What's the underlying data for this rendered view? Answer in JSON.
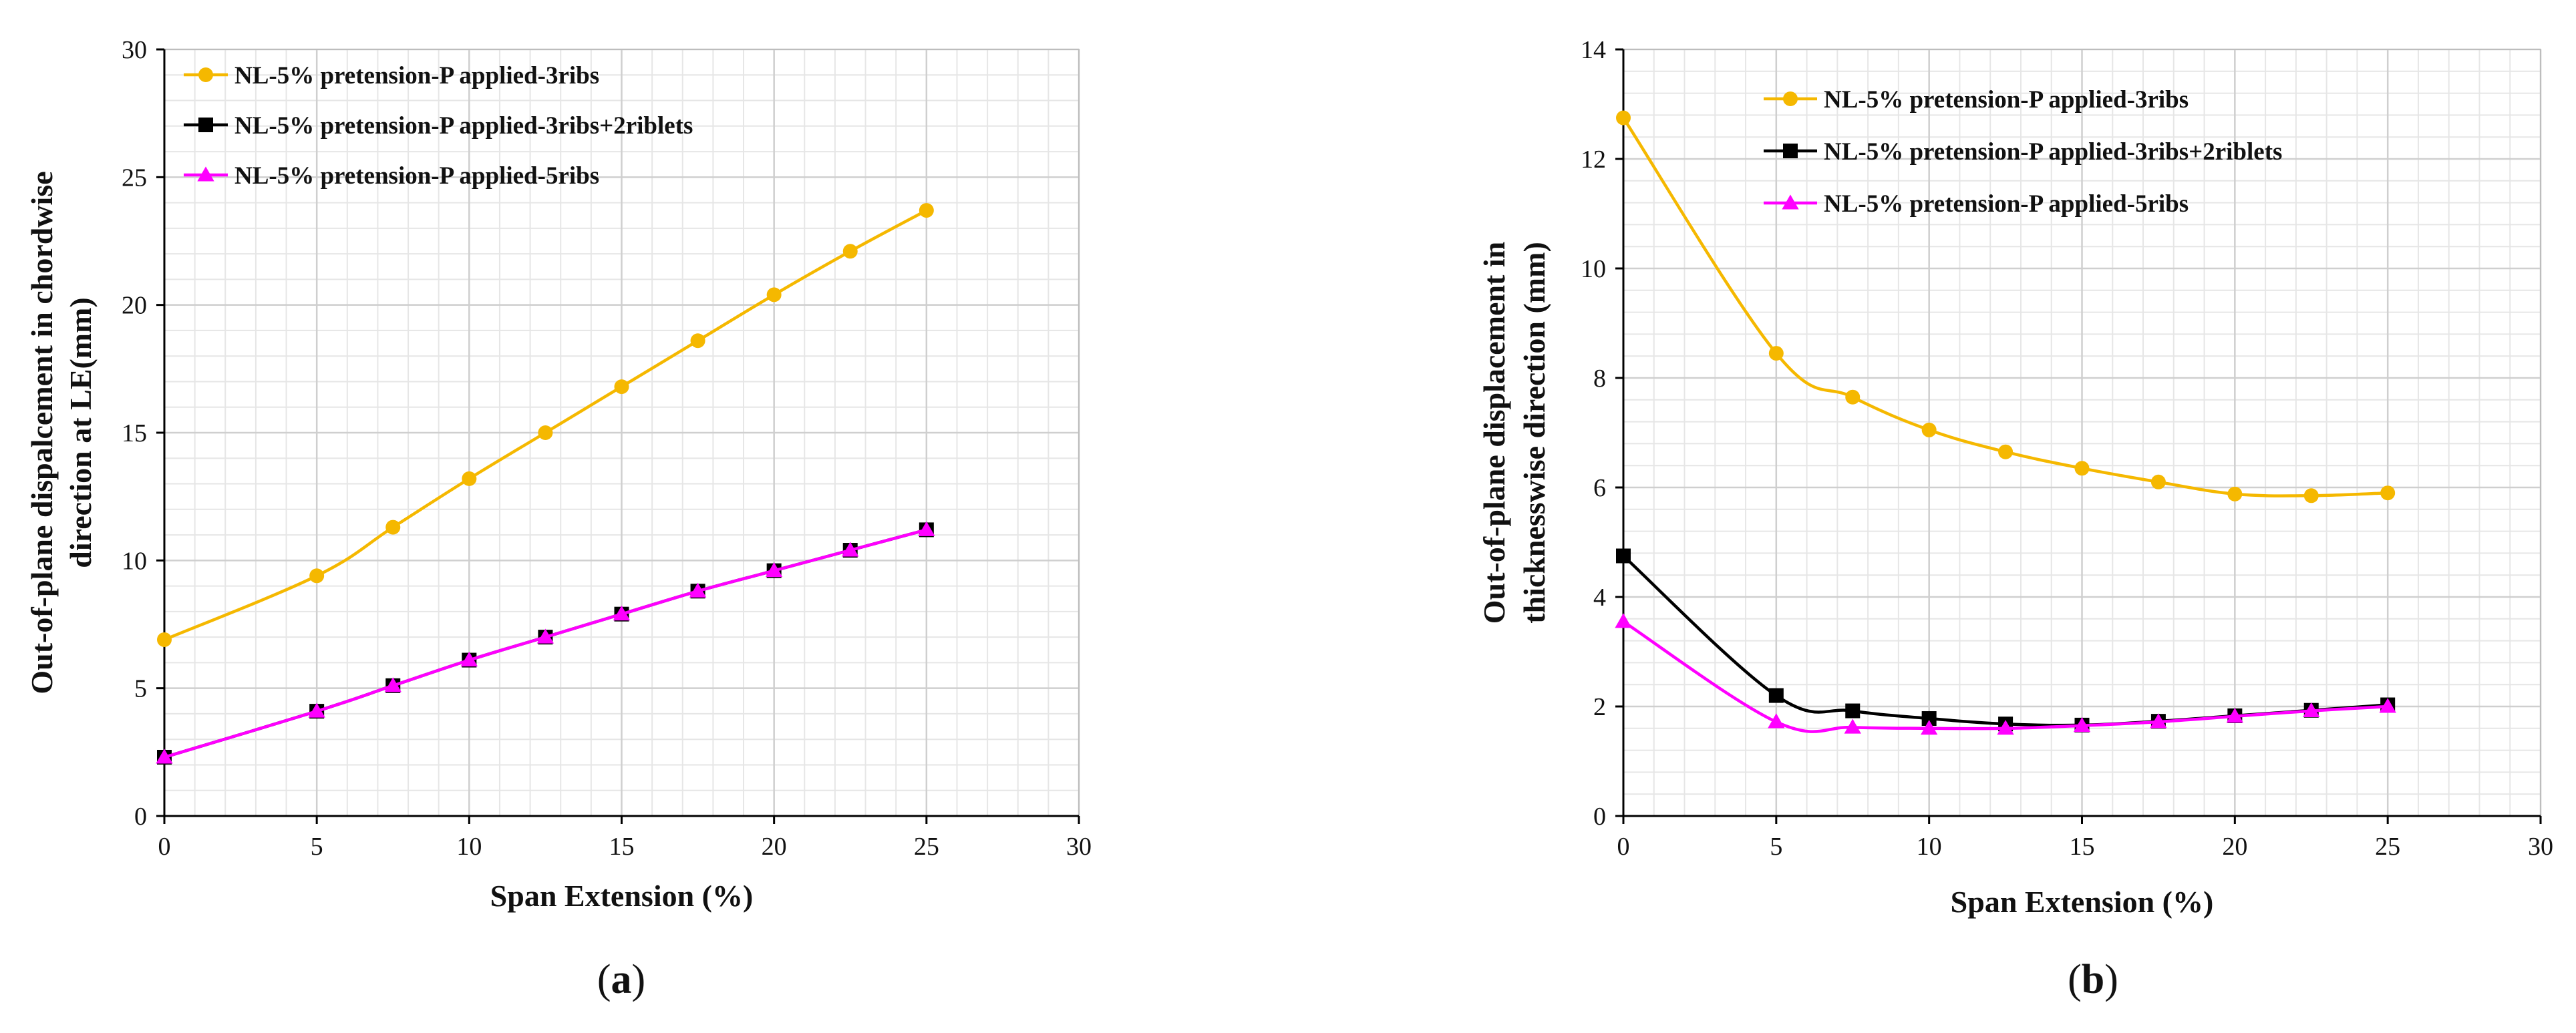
{
  "chart_data": [
    {
      "type": "line",
      "id": "a",
      "title": "",
      "caption_open": "(",
      "caption_letter": "a",
      "caption_close": ")",
      "xlabel": "Span Extension (%)",
      "ylabel_line1": "Out-of-plane dispalcement in chordwise",
      "ylabel_line2": "direction at LE(mm)",
      "xlim": [
        0,
        30
      ],
      "ylim": [
        0,
        30
      ],
      "xticks": [
        0,
        5,
        10,
        15,
        20,
        25,
        30
      ],
      "yticks": [
        0,
        5,
        10,
        15,
        20,
        25,
        30
      ],
      "grid": true,
      "legend_position": "top-left",
      "x": [
        0,
        5,
        7.5,
        10,
        12.5,
        15,
        17.5,
        20,
        22.5,
        25
      ],
      "series": [
        {
          "name": "NL-5% pretension-P applied-3ribs",
          "color": "#F5B800",
          "marker": "circle",
          "values": [
            6.9,
            9.4,
            11.3,
            13.2,
            15.0,
            16.8,
            18.6,
            20.4,
            22.1,
            23.7
          ]
        },
        {
          "name": "NL-5% pretension-P applied-3ribs+2riblets",
          "color": "#000000",
          "marker": "square",
          "values": [
            2.3,
            4.1,
            5.1,
            6.1,
            7.0,
            7.9,
            8.8,
            9.6,
            10.4,
            11.2
          ]
        },
        {
          "name": "NL-5% pretension-P applied-5ribs",
          "color": "#FF00FF",
          "marker": "triangle",
          "values": [
            2.3,
            4.1,
            5.1,
            6.1,
            7.0,
            7.9,
            8.8,
            9.6,
            10.4,
            11.2
          ]
        }
      ]
    },
    {
      "type": "line",
      "id": "b",
      "title": "",
      "caption_open": "(",
      "caption_letter": "b",
      "caption_close": ")",
      "xlabel": "Span Extension (%)",
      "ylabel_line1": "Out-of-plane displacement in",
      "ylabel_line2": "thicknesswise  direction (mm)",
      "xlim": [
        0,
        30
      ],
      "ylim": [
        0,
        14
      ],
      "xticks": [
        0,
        5,
        10,
        15,
        20,
        25,
        30
      ],
      "yticks": [
        0,
        2,
        4,
        6,
        8,
        10,
        12,
        14
      ],
      "grid": true,
      "legend_position": "top-center",
      "x": [
        0,
        5,
        7.5,
        10,
        12.5,
        15,
        17.5,
        20,
        22.5,
        25
      ],
      "series": [
        {
          "name": "NL-5% pretension-P applied-3ribs",
          "color": "#F5B800",
          "marker": "circle",
          "values": [
            12.75,
            8.45,
            7.65,
            7.05,
            6.65,
            6.35,
            6.1,
            5.88,
            5.85,
            5.9
          ]
        },
        {
          "name": "NL-5% pretension-P applied-3ribs+2riblets",
          "color": "#000000",
          "marker": "square",
          "values": [
            4.75,
            2.2,
            1.92,
            1.78,
            1.68,
            1.66,
            1.73,
            1.83,
            1.93,
            2.03
          ]
        },
        {
          "name": "NL-5% pretension-P applied-5ribs",
          "color": "#FF00FF",
          "marker": "triangle",
          "values": [
            3.55,
            1.72,
            1.62,
            1.6,
            1.6,
            1.65,
            1.72,
            1.82,
            1.92,
            2.0
          ]
        }
      ]
    }
  ]
}
